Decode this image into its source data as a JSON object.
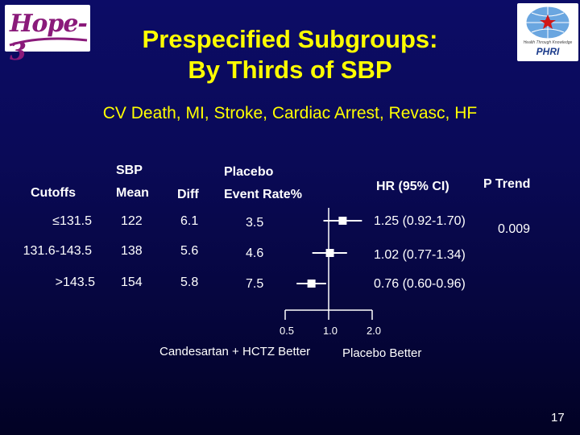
{
  "logos": {
    "left_text": "Hope-3",
    "right_text": "PHRI",
    "right_tagline": "Health Through Knowledge"
  },
  "title_line1": "Prespecified Subgroups:",
  "title_line2": "By Thirds of SBP",
  "subtitle": "CV Death, MI, Stroke, Cardiac Arrest, Revasc, HF",
  "headers": {
    "cutoffs": "Cutoffs",
    "sbp": "SBP",
    "mean": "Mean",
    "diff": "Diff",
    "placebo": "Placebo",
    "event_rate": "Event Rate%",
    "hr": "HR (95% CI)",
    "p_trend": "P Trend"
  },
  "rows": [
    {
      "cutoff": "≤131.5",
      "mean": "122",
      "diff": "6.1",
      "event_rate": "3.5",
      "hr_text": "1.25 (0.92-1.70)",
      "hr": 1.25,
      "lo": 0.92,
      "hi": 1.7
    },
    {
      "cutoff": "131.6-143.5",
      "mean": "138",
      "diff": "5.6",
      "event_rate": "4.6",
      "hr_text": "1.02 (0.77-1.34)",
      "hr": 1.02,
      "lo": 0.77,
      "hi": 1.34
    },
    {
      "cutoff": ">143.5",
      "mean": "154",
      "diff": "5.8",
      "event_rate": "7.5",
      "hr_text": "0.76 (0.60-0.96)",
      "hr": 0.76,
      "lo": 0.6,
      "hi": 0.96
    }
  ],
  "p_trend_value": "0.009",
  "axis": {
    "scale": "log",
    "ticks": [
      {
        "value": 0.5,
        "label": "0.5"
      },
      {
        "value": 1.0,
        "label": "1.0"
      },
      {
        "value": 2.0,
        "label": "2.0"
      }
    ]
  },
  "favor_left": "Candesartan + HCTZ Better",
  "favor_right": "Placebo Better",
  "page_number": "17"
}
